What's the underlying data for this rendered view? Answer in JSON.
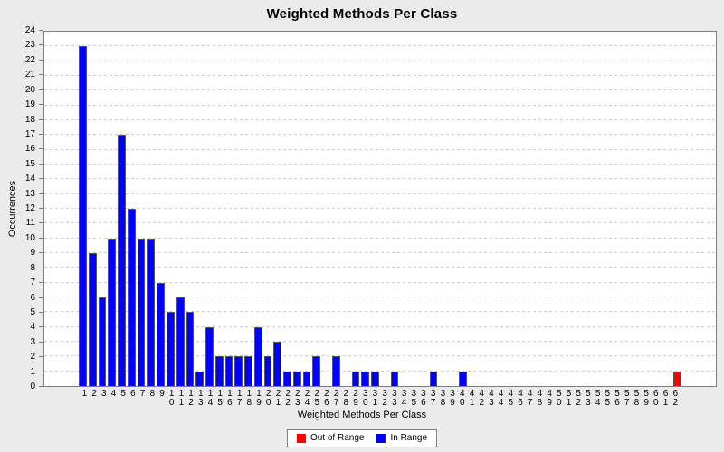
{
  "page": {
    "background_color": "#ebebeb"
  },
  "chart_data": {
    "type": "bar",
    "title": "Weighted Methods Per Class",
    "xlabel": "Weighted Methods Per Class",
    "ylabel": "Occurrences",
    "ylim": [
      0,
      24
    ],
    "y_ticks": [
      0,
      1,
      2,
      3,
      4,
      5,
      6,
      7,
      8,
      9,
      10,
      11,
      12,
      13,
      14,
      15,
      16,
      17,
      18,
      19,
      20,
      21,
      22,
      23,
      24
    ],
    "categories": [
      1,
      2,
      3,
      4,
      5,
      6,
      7,
      8,
      9,
      10,
      11,
      12,
      13,
      14,
      15,
      16,
      17,
      18,
      19,
      20,
      21,
      22,
      23,
      24,
      25,
      26,
      27,
      28,
      29,
      30,
      31,
      32,
      33,
      34,
      35,
      36,
      37,
      38,
      39,
      40,
      41,
      42,
      43,
      44,
      45,
      46,
      47,
      48,
      49,
      50,
      51,
      52,
      53,
      54,
      55,
      56,
      57,
      58,
      59,
      60,
      61,
      62
    ],
    "series": [
      {
        "name": "Out of Range",
        "color": "#ff0000",
        "values": [
          0,
          0,
          0,
          0,
          0,
          0,
          0,
          0,
          0,
          0,
          0,
          0,
          0,
          0,
          0,
          0,
          0,
          0,
          0,
          0,
          0,
          0,
          0,
          0,
          0,
          0,
          0,
          0,
          0,
          0,
          0,
          0,
          0,
          0,
          0,
          0,
          0,
          0,
          0,
          0,
          0,
          0,
          0,
          0,
          0,
          0,
          0,
          0,
          0,
          0,
          0,
          0,
          0,
          0,
          0,
          0,
          0,
          0,
          0,
          0,
          0,
          1
        ]
      },
      {
        "name": "In Range",
        "color": "#0000ff",
        "values": [
          23,
          9,
          6,
          10,
          17,
          12,
          10,
          10,
          7,
          5,
          6,
          5,
          1,
          4,
          2,
          2,
          2,
          2,
          4,
          2,
          3,
          1,
          1,
          1,
          2,
          0,
          2,
          0,
          1,
          1,
          1,
          0,
          1,
          0,
          0,
          0,
          1,
          0,
          0,
          1,
          0,
          0,
          0,
          0,
          0,
          0,
          0,
          0,
          0,
          0,
          0,
          0,
          0,
          0,
          0,
          0,
          0,
          0,
          0,
          0,
          0,
          0
        ]
      }
    ],
    "grid": "horizontal-dashed",
    "gridline_color": "#cccccc",
    "plot_background": "#ffffff",
    "plot_border_color": "#7e7e7e",
    "bar_outline_color": "#555555",
    "legend_position": "bottom",
    "axis_margin_pct": 5
  }
}
